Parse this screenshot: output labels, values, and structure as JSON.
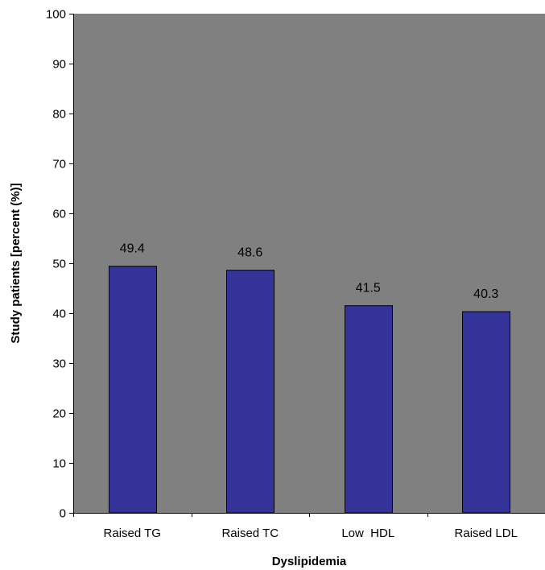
{
  "chart_data": {
    "type": "bar",
    "title": "",
    "xlabel": "Dyslipidemia",
    "ylabel": "Study patients [percent (%)]",
    "categories": [
      "Raised TG",
      "Raised TC",
      "Low  HDL",
      "Raised LDL"
    ],
    "values": [
      49.4,
      48.6,
      41.5,
      40.3
    ],
    "value_labels": [
      "49.4",
      "48.6",
      "41.5",
      "40.3"
    ],
    "ylim": [
      0,
      100
    ],
    "yticks": [
      0,
      10,
      20,
      30,
      40,
      50,
      60,
      70,
      80,
      90,
      100
    ],
    "grid": false,
    "legend": "none",
    "colors": {
      "bar_fill": "#333399",
      "bar_stroke": "#000000",
      "plot_background": "#808080"
    }
  }
}
